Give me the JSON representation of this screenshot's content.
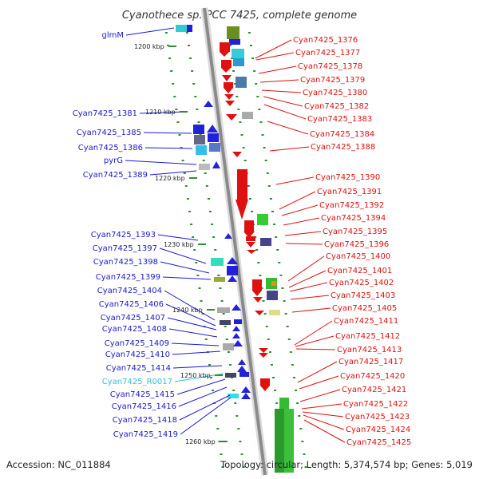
{
  "title": "Cyanothece sp. PCC 7425, complete genome",
  "footer": {
    "accession": "Accession: NC_011884",
    "topology": "Topology: circular; Length: 5,374,574 bp; Genes: 5,019"
  },
  "kbp_ticks": [
    "1200 kbp",
    "1210 kbp",
    "1220 kbp",
    "1230 kbp",
    "1240 kbp",
    "1250 kbp",
    "1260 kbp"
  ],
  "left_labels": [
    {
      "text": "glmM",
      "color": "#1a1acd"
    },
    {
      "text": "Cyan7425_1381",
      "color": "#1a1acd"
    },
    {
      "text": "Cyan7425_1385",
      "color": "#1a1acd"
    },
    {
      "text": "Cyan7425_1386",
      "color": "#1a1acd"
    },
    {
      "text": "pyrG",
      "color": "#1a1acd"
    },
    {
      "text": "Cyan7425_1389",
      "color": "#1a1acd"
    },
    {
      "text": "Cyan7425_1393",
      "color": "#1a1acd"
    },
    {
      "text": "Cyan7425_1397",
      "color": "#1a1acd"
    },
    {
      "text": "Cyan7425_1398",
      "color": "#1a1acd"
    },
    {
      "text": "Cyan7425_1399",
      "color": "#1a1acd"
    },
    {
      "text": "Cyan7425_1404",
      "color": "#1a1acd"
    },
    {
      "text": "Cyan7425_1406",
      "color": "#1a1acd"
    },
    {
      "text": "Cyan7425_1407",
      "color": "#1a1acd"
    },
    {
      "text": "Cyan7425_1408",
      "color": "#1a1acd"
    },
    {
      "text": "Cyan7425_1409",
      "color": "#1a1acd"
    },
    {
      "text": "Cyan7425_1410",
      "color": "#1a1acd"
    },
    {
      "text": "Cyan7425_1414",
      "color": "#1a1acd"
    },
    {
      "text": "Cyan7425_R0017",
      "color": "#33bfd6"
    },
    {
      "text": "Cyan7425_1415",
      "color": "#1a1acd"
    },
    {
      "text": "Cyan7425_1416",
      "color": "#1a1acd"
    },
    {
      "text": "Cyan7425_1418",
      "color": "#1a1acd"
    },
    {
      "text": "Cyan7425_1419",
      "color": "#1a1acd"
    }
  ],
  "right_labels": [
    "Cyan7425_1376",
    "Cyan7425_1377",
    "Cyan7425_1378",
    "Cyan7425_1379",
    "Cyan7425_1380",
    "Cyan7425_1382",
    "Cyan7425_1383",
    "Cyan7425_1384",
    "Cyan7425_1388",
    "Cyan7425_1390",
    "Cyan7425_1391",
    "Cyan7425_1392",
    "Cyan7425_1394",
    "Cyan7425_1395",
    "Cyan7425_1396",
    "Cyan7425_1400",
    "Cyan7425_1401",
    "Cyan7425_1402",
    "Cyan7425_1403",
    "Cyan7425_1405",
    "Cyan7425_1411",
    "Cyan7425_1412",
    "Cyan7425_1413",
    "Cyan7425_1417",
    "Cyan7425_1420",
    "Cyan7425_1421",
    "Cyan7425_1422",
    "Cyan7425_1423",
    "Cyan7425_1424",
    "Cyan7425_1425"
  ]
}
